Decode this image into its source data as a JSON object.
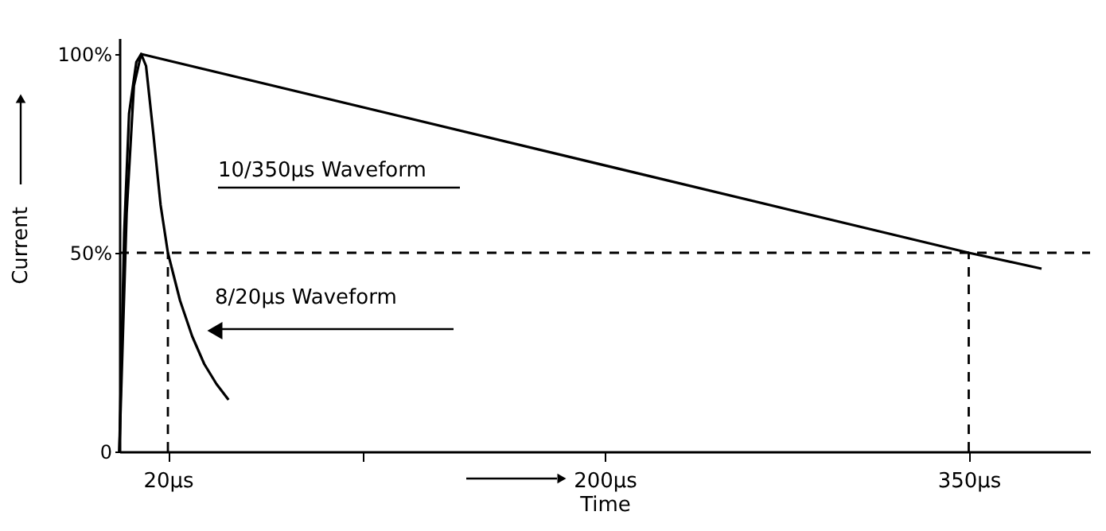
{
  "chart_data": {
    "type": "line",
    "xlabel": "Time",
    "ylabel": "Current",
    "series": [
      {
        "name": "10/350μs Waveform",
        "color": "#000000",
        "x": [
          0,
          3,
          6,
          9,
          350,
          380
        ],
        "values": [
          0,
          60,
          92,
          100,
          50,
          46
        ]
      },
      {
        "name": "8/20μs Waveform",
        "color": "#000000",
        "x": [
          0,
          2,
          4,
          7,
          9,
          11,
          14,
          17,
          20,
          25,
          30,
          35,
          40,
          45
        ],
        "values": [
          0,
          55,
          85,
          98,
          100,
          97,
          80,
          62,
          50,
          38,
          29,
          22,
          17,
          13
        ]
      }
    ],
    "xlim": [
      0,
      400
    ],
    "ylim": [
      0,
      104
    ],
    "xticks": [
      {
        "value": 20,
        "label": "20μs"
      },
      {
        "value": 100,
        "label": null
      },
      {
        "value": 200,
        "label": "200μs"
      },
      {
        "value": 350,
        "label": "350μs"
      }
    ],
    "yticks": [
      {
        "value": 0,
        "label": "0"
      },
      {
        "value": 50,
        "label": "50%"
      },
      {
        "value": 100,
        "label": "100%"
      }
    ],
    "ref_lines": [
      {
        "axis": "y",
        "value": 50,
        "line_style": "dashed"
      },
      {
        "axis": "x",
        "value": 20,
        "line_style": "dashed"
      },
      {
        "axis": "x",
        "value": 350,
        "line_style": "dashed"
      }
    ],
    "grid": false,
    "marker": "none",
    "line_style": "solid"
  }
}
